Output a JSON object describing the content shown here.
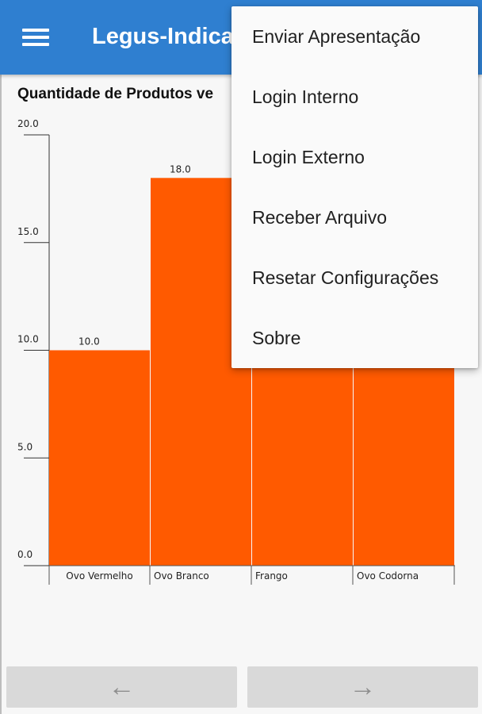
{
  "app_bar": {
    "title": "Legus-Indica",
    "menu_icon": "hamburger-menu-icon",
    "color": "#2f7fd0"
  },
  "chart_data": {
    "type": "bar",
    "title": "Quantidade de Produtos ve",
    "categories": [
      "Ovo Vermelho",
      "Ovo Branco",
      "Frango",
      "Ovo Codorna"
    ],
    "values": [
      10.0,
      18.0,
      null,
      null
    ],
    "value_labels": [
      "10.0",
      "18.0",
      "",
      ""
    ],
    "yticks": [
      "0.0",
      "5.0",
      "10.0",
      "15.0",
      "20.0"
    ],
    "ylim": [
      0,
      20
    ],
    "bar_color": "#ff5a00",
    "grid": false,
    "note": ""
  },
  "overflow_menu": {
    "items": [
      {
        "label": "Enviar Apresentação"
      },
      {
        "label": "Login Interno"
      },
      {
        "label": "Login Externo"
      },
      {
        "label": "Receber Arquivo"
      },
      {
        "label": "Resetar Configurações"
      },
      {
        "label": "Sobre"
      }
    ]
  },
  "navigation": {
    "prev_icon": "arrow-left-icon",
    "prev_glyph": "←",
    "next_icon": "arrow-right-icon",
    "next_glyph": "→"
  }
}
